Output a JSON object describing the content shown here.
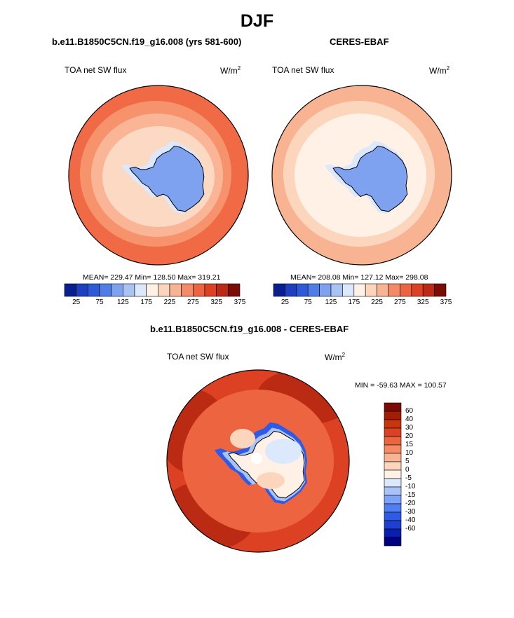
{
  "page_title": "DJF",
  "panels": [
    {
      "title": "b.e11.B1850C5CN.f19_g16.008 (yrs 581-600)",
      "left_label": "TOA net SW flux",
      "units": "W/m",
      "units_sup": "2",
      "stats": "MEAN= 229.47  Min= 128.50  Max= 319.21",
      "colorbar": {
        "colors": [
          "#0a1f8f",
          "#1e3fbf",
          "#2d5ad6",
          "#4f7fe6",
          "#7ea2f0",
          "#a9c3f5",
          "#dce8fb",
          "#fff1e6",
          "#fcd5bd",
          "#f8b393",
          "#f48b66",
          "#ec6440",
          "#dd4123",
          "#bb2a12",
          "#7a0b05"
        ],
        "tick_labels": [
          "25",
          "75",
          "125",
          "175",
          "225",
          "275",
          "325",
          "375"
        ]
      },
      "map_colors": {
        "ocean_outer": "#ef6a45",
        "ring1": "#f6936d",
        "ring2": "#f9b596",
        "ring3": "#fcd9c2",
        "ring4": "#dce8fb",
        "ice": "#7ea2f0",
        "ice_dark": "#6a8fea"
      }
    },
    {
      "title": "CERES-EBAF",
      "left_label": "TOA net SW flux",
      "units": "W/m",
      "units_sup": "2",
      "stats": "MEAN= 208.08  Min= 127.12  Max= 298.08",
      "colorbar": {
        "colors": [
          "#0a1f8f",
          "#1e3fbf",
          "#2d5ad6",
          "#4f7fe6",
          "#7ea2f0",
          "#a9c3f5",
          "#dce8fb",
          "#fff1e6",
          "#fcd5bd",
          "#f8b393",
          "#f48b66",
          "#ec6440",
          "#dd4123",
          "#bb2a12",
          "#7a0b05"
        ],
        "tick_labels": [
          "25",
          "75",
          "125",
          "175",
          "225",
          "275",
          "325",
          "375"
        ]
      },
      "map_colors": {
        "ocean_outer": "#f8b393",
        "ring1": "#fcd5bd",
        "ring2": "#fff1e6",
        "ring3": "#fff1e6",
        "ring4": "#dce8fb",
        "ice": "#7ea2f0",
        "ice_dark": "#6a8fea"
      }
    }
  ],
  "diff_panel": {
    "title": "b.e11.B1850C5CN.f19_g16.008 - CERES-EBAF",
    "left_label": "TOA net SW flux",
    "units": "W/m",
    "units_sup": "2",
    "stats": "MIN = -59.63 MAX = 100.57",
    "colorbar": {
      "colors": [
        "#000080",
        "#0a1fb0",
        "#1e3fd0",
        "#2d5ae6",
        "#4f7ff0",
        "#7ea2f5",
        "#a9c3f8",
        "#dce8fb",
        "#fff1e6",
        "#fcd5bd",
        "#f8b393",
        "#f48b66",
        "#ec6440",
        "#dd4123",
        "#c8350f",
        "#a01e05",
        "#7a0b05"
      ],
      "tick_labels": [
        "60",
        "40",
        "30",
        "20",
        "15",
        "10",
        "5",
        "0",
        "-5",
        "-10",
        "-15",
        "-20",
        "-30",
        "-40",
        "-60"
      ]
    },
    "map_colors": {
      "ocean": "#dd4123",
      "ocean_dark": "#bb2a12",
      "ocean_light": "#ec6440",
      "coast_blue": "#2d5ae6",
      "coast_pale": "#a9c3f8",
      "interior": "#fff1e6",
      "interior_blue": "#dce8fb",
      "interior_orange": "#fcd5bd"
    }
  }
}
